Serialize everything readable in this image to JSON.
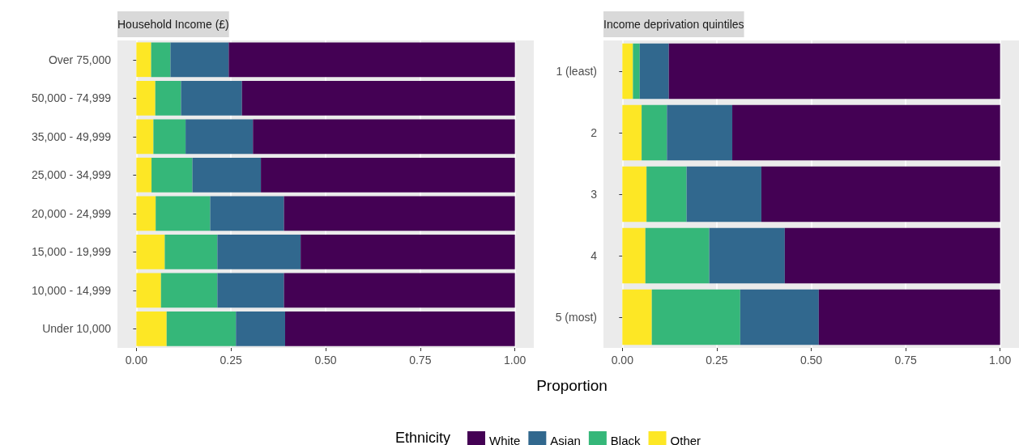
{
  "chart_data": [
    {
      "type": "bar",
      "title": "Household Income (£)",
      "xlabel": "Proportion",
      "legend_title": "Ethnicity",
      "orientation": "horizontal",
      "stacked": true,
      "categories": [
        "Over 75,000",
        "50,000 - 74,999",
        "35,000 - 49,999",
        "25,000 - 34,999",
        "20,000 - 24,999",
        "15,000 - 19,999",
        "10,000 - 14,999",
        "Under 10,000"
      ],
      "series": [
        {
          "name": "Other",
          "color": "#fde725",
          "values": [
            0.039,
            0.05,
            0.045,
            0.04,
            0.051,
            0.075,
            0.065,
            0.08
          ]
        },
        {
          "name": "Black",
          "color": "#35b779",
          "values": [
            0.051,
            0.068,
            0.085,
            0.108,
            0.144,
            0.139,
            0.149,
            0.183
          ]
        },
        {
          "name": "Asian",
          "color": "#31688e",
          "values": [
            0.154,
            0.161,
            0.178,
            0.181,
            0.195,
            0.22,
            0.176,
            0.13
          ]
        },
        {
          "name": "White",
          "color": "#440154",
          "values": [
            0.756,
            0.721,
            0.692,
            0.671,
            0.61,
            0.566,
            0.61,
            0.607
          ]
        }
      ],
      "xlim": [
        -0.05,
        1.05
      ],
      "xticks": [
        {
          "value": 0,
          "label": "0.00"
        },
        {
          "value": 0.25,
          "label": "0.25"
        },
        {
          "value": 0.5,
          "label": "0.50"
        },
        {
          "value": 0.75,
          "label": "0.75"
        },
        {
          "value": 1,
          "label": "1.00"
        }
      ],
      "grid": "x",
      "legend": "bottom"
    },
    {
      "type": "bar",
      "title": "Income deprivation quintiles",
      "orientation": "horizontal",
      "stacked": true,
      "categories": [
        "1 (least)",
        "2",
        "3",
        "4",
        "5 (most)"
      ],
      "series": [
        {
          "color": "#fde725",
          "values": [
            0.028,
            0.051,
            0.064,
            0.061,
            0.078
          ]
        },
        {
          "color": "#35b779",
          "values": [
            0.018,
            0.067,
            0.106,
            0.169,
            0.234
          ]
        },
        {
          "color": "#31688e",
          "values": [
            0.077,
            0.173,
            0.198,
            0.2,
            0.208
          ]
        },
        {
          "color": "#440154",
          "values": [
            0.877,
            0.709,
            0.632,
            0.57,
            0.48
          ]
        }
      ],
      "xlim": [
        -0.05,
        1.05
      ],
      "xticks": [
        {
          "value": 0,
          "label": "0.00"
        },
        {
          "value": 0.25,
          "label": "0.25"
        },
        {
          "value": 0.5,
          "label": "0.50"
        },
        {
          "value": 0.75,
          "label": "0.75"
        },
        {
          "value": 1,
          "label": "1.00"
        }
      ],
      "grid": "x"
    }
  ]
}
